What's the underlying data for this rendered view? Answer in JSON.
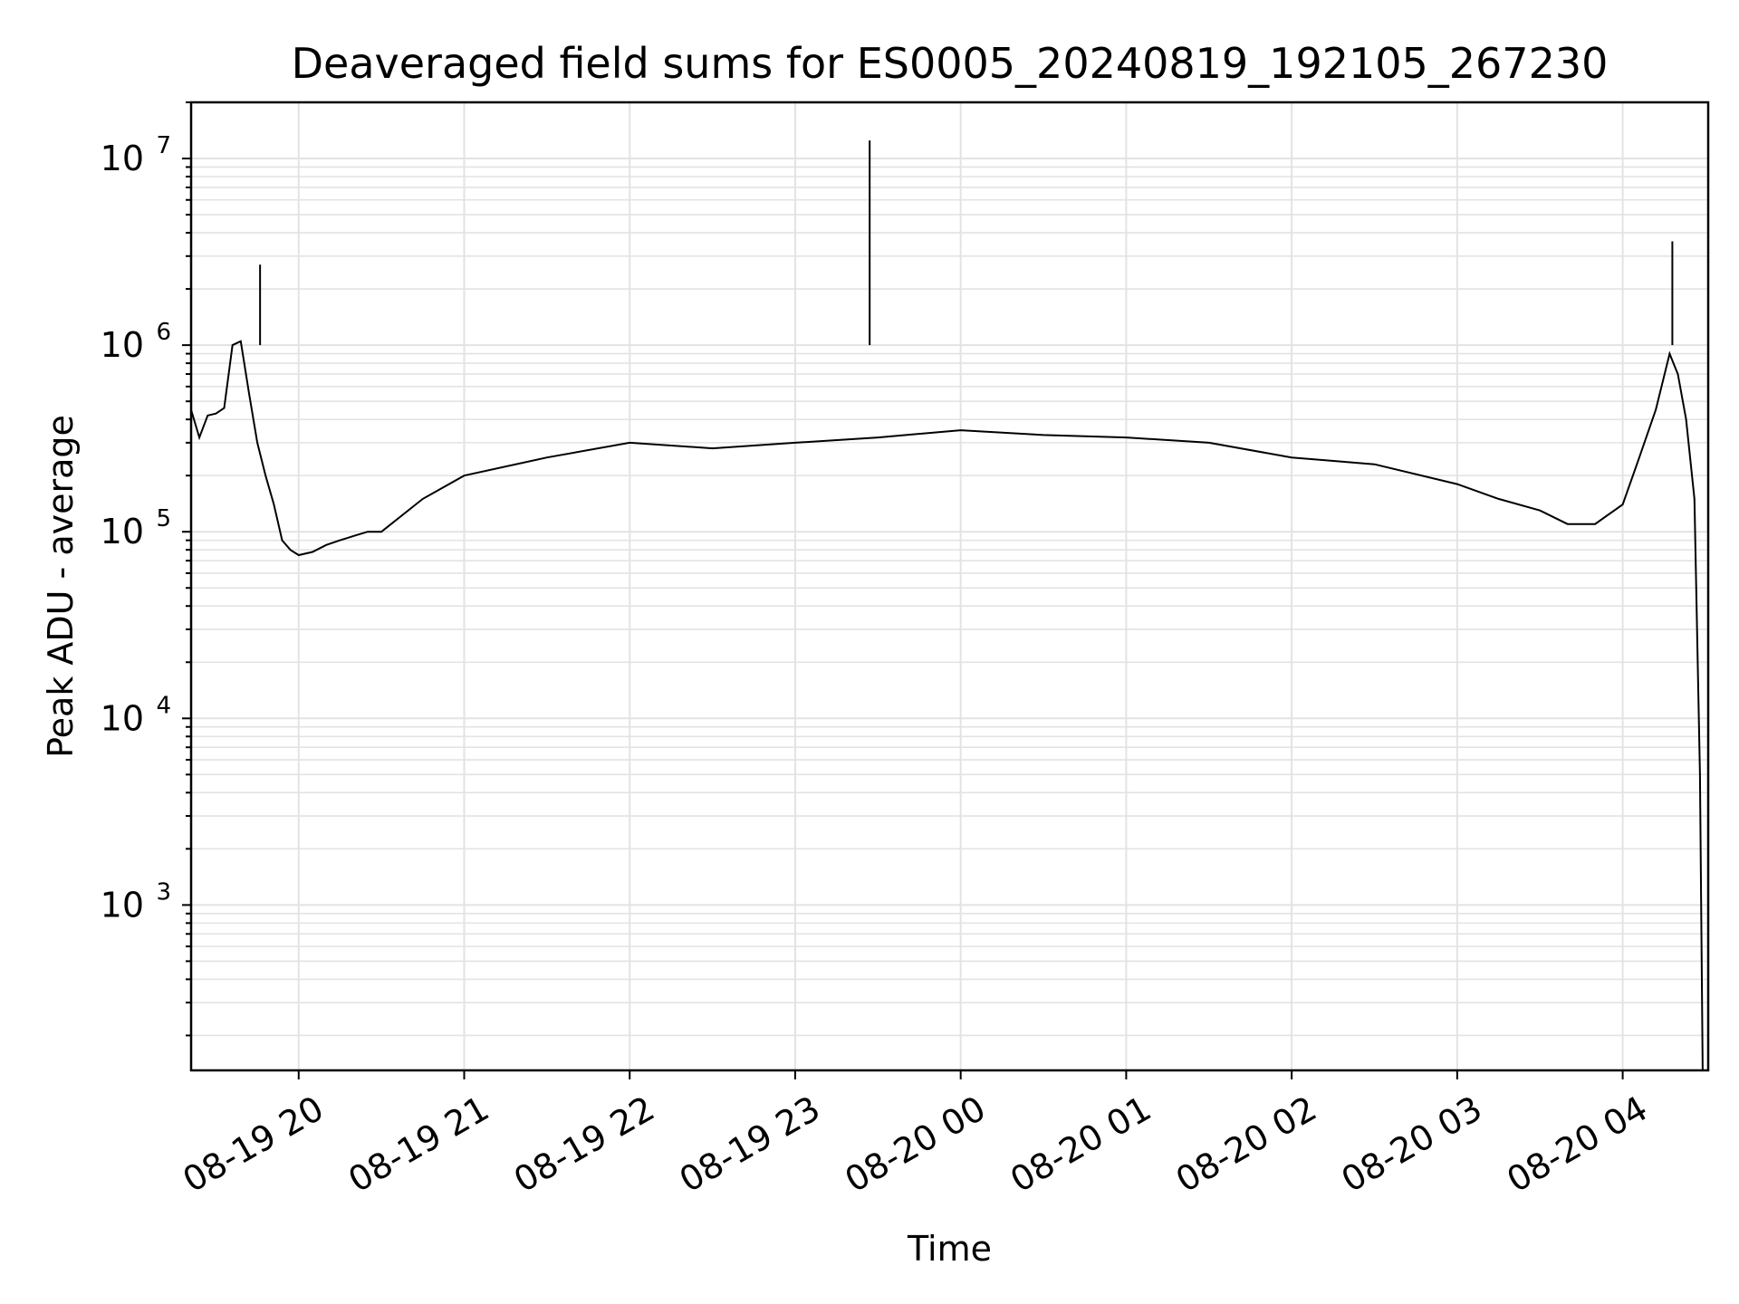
{
  "chart_data": {
    "type": "line",
    "title": "Deaveraged field sums for ES0005_20240819_192105_267230",
    "xlabel": "Time",
    "ylabel": "Peak ADU - average",
    "x_range": [
      "2024-08-19 19:21",
      "2024-08-20 04:31"
    ],
    "y_scale": "log",
    "ylim": [
      130,
      20000000
    ],
    "grid": true,
    "line_color": "#000000",
    "grid_color": "#e3e3e3",
    "x_ticks": [
      {
        "value": "2024-08-19 20:00",
        "label": "08-19 20"
      },
      {
        "value": "2024-08-19 21:00",
        "label": "08-19 21"
      },
      {
        "value": "2024-08-19 22:00",
        "label": "08-19 22"
      },
      {
        "value": "2024-08-19 23:00",
        "label": "08-19 23"
      },
      {
        "value": "2024-08-20 00:00",
        "label": "08-20 00"
      },
      {
        "value": "2024-08-20 01:00",
        "label": "08-20 01"
      },
      {
        "value": "2024-08-20 02:00",
        "label": "08-20 02"
      },
      {
        "value": "2024-08-20 03:00",
        "label": "08-20 03"
      },
      {
        "value": "2024-08-20 04:00",
        "label": "08-20 04"
      }
    ],
    "y_ticks": [
      {
        "value": 1000,
        "base": "10",
        "exp": "3"
      },
      {
        "value": 10000,
        "base": "10",
        "exp": "4"
      },
      {
        "value": 100000,
        "base": "10",
        "exp": "5"
      },
      {
        "value": 1000000,
        "base": "10",
        "exp": "6"
      },
      {
        "value": 10000000,
        "base": "10",
        "exp": "7"
      }
    ],
    "series": [
      {
        "x": [
          "2024-08-19 19:21",
          "2024-08-19 19:24",
          "2024-08-19 19:27",
          "2024-08-19 19:30",
          "2024-08-19 19:33",
          "2024-08-19 19:36",
          "2024-08-19 19:39",
          "2024-08-19 19:42",
          "2024-08-19 19:45",
          "2024-08-19 19:48",
          "2024-08-19 19:51",
          "2024-08-19 19:54",
          "2024-08-19 19:57",
          "2024-08-19 20:00",
          "2024-08-19 20:05",
          "2024-08-19 20:10",
          "2024-08-19 20:15",
          "2024-08-19 20:20",
          "2024-08-19 20:25",
          "2024-08-19 20:30",
          "2024-08-19 20:45",
          "2024-08-19 21:00",
          "2024-08-19 21:30",
          "2024-08-19 22:00",
          "2024-08-19 22:30",
          "2024-08-19 23:00",
          "2024-08-19 23:30",
          "2024-08-20 00:00",
          "2024-08-20 00:30",
          "2024-08-20 01:00",
          "2024-08-20 01:30",
          "2024-08-20 02:00",
          "2024-08-20 02:30",
          "2024-08-20 03:00",
          "2024-08-20 03:15",
          "2024-08-20 03:30",
          "2024-08-20 03:40",
          "2024-08-20 03:50",
          "2024-08-20 04:00",
          "2024-08-20 04:06",
          "2024-08-20 04:12",
          "2024-08-20 04:17",
          "2024-08-20 04:20",
          "2024-08-20 04:23",
          "2024-08-20 04:26",
          "2024-08-20 04:28",
          "2024-08-20 04:29"
        ],
        "y": [
          450000,
          320000,
          420000,
          430000,
          460000,
          1000000,
          1050000,
          550000,
          300000,
          200000,
          140000,
          90000,
          80000,
          75000,
          78000,
          85000,
          90000,
          95000,
          100000,
          100000,
          150000,
          200000,
          250000,
          300000,
          280000,
          300000,
          320000,
          350000,
          330000,
          320000,
          300000,
          250000,
          230000,
          180000,
          150000,
          130000,
          110000,
          110000,
          140000,
          250000,
          450000,
          900000,
          700000,
          400000,
          150000,
          5000,
          130
        ]
      }
    ],
    "annotations": [
      {
        "x": "2024-08-19 19:46",
        "y": 2700000,
        "note": "spike"
      },
      {
        "x": "2024-08-19 23:27",
        "y": 12500000,
        "note": "spike"
      },
      {
        "x": "2024-08-20 04:18",
        "y": 3600000,
        "note": "spike"
      }
    ]
  }
}
